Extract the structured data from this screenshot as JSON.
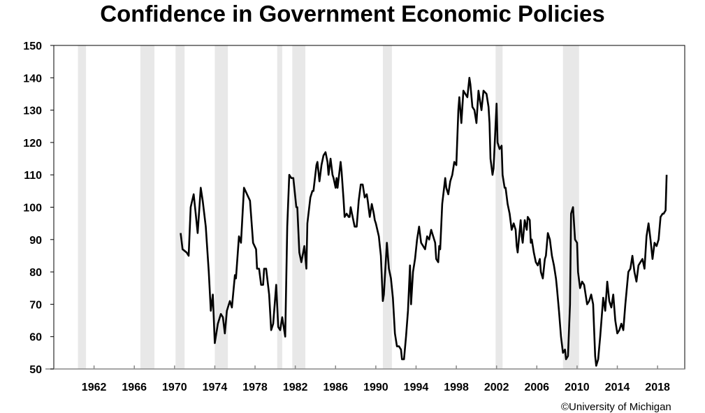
{
  "chart_data": {
    "type": "line",
    "title": "Confidence in Government Economic Policies",
    "xlabel": "",
    "ylabel": "",
    "xlim": [
      1958,
      2020.7
    ],
    "ylim": [
      50,
      150
    ],
    "yticks": [
      50,
      60,
      70,
      80,
      90,
      100,
      110,
      120,
      130,
      140,
      150
    ],
    "xticks": [
      1962,
      1966,
      1970,
      1974,
      1978,
      1982,
      1986,
      1990,
      1994,
      1998,
      2002,
      2006,
      2010,
      2014,
      2018
    ],
    "grid": false,
    "line_color": "#000000",
    "band_color": "#e8e8e8",
    "shaded_bands": [
      [
        1960.4,
        1961.2
      ],
      [
        1966.6,
        1968.0
      ],
      [
        1970.1,
        1971.0
      ],
      [
        1974.0,
        1975.3
      ],
      [
        1980.2,
        1980.7
      ],
      [
        1981.7,
        1983.0
      ],
      [
        1990.7,
        1991.6
      ],
      [
        2001.9,
        2002.6
      ],
      [
        2008.6,
        2010.2
      ]
    ],
    "x": [
      1970.6,
      1970.8,
      1971.2,
      1971.4,
      1971.6,
      1971.9,
      1972.1,
      1972.3,
      1972.6,
      1972.8,
      1973.1,
      1973.4,
      1973.6,
      1973.8,
      1974.0,
      1974.3,
      1974.6,
      1974.8,
      1975.0,
      1975.2,
      1975.5,
      1975.7,
      1976.0,
      1976.1,
      1976.4,
      1976.6,
      1976.9,
      1977.5,
      1977.8,
      1978.1,
      1978.2,
      1978.4,
      1978.6,
      1978.8,
      1978.9,
      1979.1,
      1979.4,
      1979.6,
      1979.8,
      1980.1,
      1980.3,
      1980.5,
      1980.7,
      1981.0,
      1981.2,
      1981.4,
      1981.6,
      1981.8,
      1982.1,
      1982.2,
      1982.4,
      1982.6,
      1982.9,
      1983.1,
      1983.2,
      1983.5,
      1983.7,
      1983.8,
      1984.1,
      1984.2,
      1984.4,
      1984.6,
      1984.8,
      1985.0,
      1985.2,
      1985.3,
      1985.5,
      1985.7,
      1985.8,
      1986.0,
      1986.1,
      1986.2,
      1986.5,
      1986.6,
      1986.8,
      1986.9,
      1987.1,
      1987.3,
      1987.4,
      1987.5,
      1987.7,
      1987.9,
      1988.1,
      1988.3,
      1988.5,
      1988.7,
      1988.9,
      1989.1,
      1989.2,
      1989.4,
      1989.6,
      1989.8,
      1989.9,
      1990.0,
      1990.3,
      1990.5,
      1990.7,
      1990.8,
      1991.1,
      1991.3,
      1991.5,
      1991.7,
      1991.9,
      1992.1,
      1992.3,
      1992.5,
      1992.6,
      1992.8,
      1993.0,
      1993.2,
      1993.4,
      1993.5,
      1993.7,
      1993.9,
      1994.1,
      1994.3,
      1994.5,
      1994.7,
      1994.9,
      1995.1,
      1995.3,
      1995.5,
      1995.7,
      1995.9,
      1996.0,
      1996.2,
      1996.3,
      1996.4,
      1996.6,
      1996.9,
      1997.0,
      1997.2,
      1997.4,
      1997.6,
      1997.8,
      1998.0,
      1998.2,
      1998.3,
      1998.5,
      1998.7,
      1998.9,
      1999.1,
      1999.3,
      1999.4,
      1999.6,
      1999.8,
      2000.0,
      2000.2,
      2000.4,
      2000.5,
      2000.7,
      2001.0,
      2001.2,
      2001.3,
      2001.4,
      2001.6,
      2001.7,
      2002.0,
      2002.1,
      2002.3,
      2002.5,
      2002.6,
      2002.8,
      2002.9,
      2003.1,
      2003.3,
      2003.5,
      2003.7,
      2003.9,
      2004.0,
      2004.1,
      2004.4,
      2004.5,
      2004.6,
      2004.8,
      2005.0,
      2005.1,
      2005.3,
      2005.4,
      2005.5,
      2005.7,
      2005.9,
      2006.1,
      2006.3,
      2006.4,
      2006.6,
      2006.8,
      2006.9,
      2007.1,
      2007.3,
      2007.5,
      2007.7,
      2007.9,
      2008.0,
      2008.2,
      2008.4,
      2008.6,
      2008.8,
      2008.9,
      2009.1,
      2009.3,
      2009.4,
      2009.6,
      2009.8,
      2010.0,
      2010.1,
      2010.3,
      2010.5,
      2010.7,
      2011.0,
      2011.2,
      2011.4,
      2011.6,
      2011.8,
      2011.9,
      2012.1,
      2012.3,
      2012.6,
      2012.8,
      2013.0,
      2013.2,
      2013.4,
      2013.6,
      2013.8,
      2014.0,
      2014.2,
      2014.4,
      2014.6,
      2014.8,
      2015.1,
      2015.3,
      2015.5,
      2015.7,
      2015.9,
      2016.1,
      2016.3,
      2016.5,
      2016.7,
      2016.9,
      2017.1,
      2017.3,
      2017.5,
      2017.7,
      2017.9,
      2018.1,
      2018.3,
      2018.5,
      2018.6,
      2018.8,
      2018.9
    ],
    "y": [
      92,
      87,
      86,
      85,
      100,
      104,
      98,
      92,
      106,
      102,
      94,
      80,
      68,
      73,
      58,
      64,
      67,
      66,
      61,
      68,
      71,
      69,
      79,
      78,
      91,
      89,
      106,
      102,
      89,
      87,
      81,
      81,
      76,
      76,
      81,
      81,
      73,
      62,
      64,
      76,
      63,
      62,
      66,
      60,
      94,
      110,
      109,
      109,
      100,
      100,
      86,
      83,
      88,
      81,
      95,
      103,
      105,
      105,
      113,
      114,
      108,
      113,
      116,
      117,
      114,
      110,
      115,
      110,
      109,
      106,
      109,
      106,
      114,
      111,
      102,
      97,
      98,
      97,
      97,
      100,
      97,
      94,
      94,
      102,
      107,
      107,
      103,
      104,
      102,
      97,
      101,
      98,
      96,
      95,
      91,
      85,
      71,
      73,
      89,
      81,
      78,
      72,
      61,
      57,
      57,
      56,
      53,
      53,
      60,
      68,
      82,
      70,
      80,
      84,
      90,
      94,
      89,
      88,
      87,
      91,
      90,
      93,
      91,
      89,
      84,
      83,
      88,
      87,
      101,
      109,
      106,
      104,
      108,
      110,
      114,
      113,
      130,
      134,
      126,
      136,
      135,
      134,
      140,
      138,
      131,
      130,
      126,
      136,
      132,
      130,
      136,
      135,
      131,
      126,
      115,
      110,
      112,
      132,
      120,
      118,
      119,
      110,
      106,
      106,
      101,
      98,
      93,
      95,
      93,
      88,
      86,
      96,
      91,
      89,
      96,
      93,
      97,
      96,
      89,
      90,
      86,
      83,
      82,
      84,
      80,
      78,
      84,
      85,
      92,
      90,
      85,
      82,
      78,
      75,
      68,
      60,
      55,
      56,
      53,
      54,
      70,
      98,
      100,
      90,
      89,
      80,
      75,
      77,
      76,
      70,
      71,
      73,
      70,
      54,
      51,
      53,
      60,
      72,
      68,
      77,
      71,
      69,
      73,
      65,
      61,
      62,
      64,
      62,
      70,
      80,
      81,
      85,
      80,
      77,
      82,
      83,
      84,
      81,
      91,
      95,
      90,
      84,
      89,
      88,
      90,
      97,
      98,
      98,
      99,
      110
    ]
  },
  "footer": {
    "credit": "©University of Michigan"
  }
}
